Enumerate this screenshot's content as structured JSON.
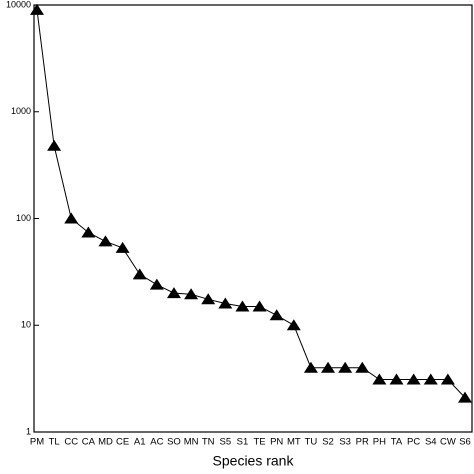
{
  "chart_data": {
    "type": "line",
    "xlabel": "Species rank",
    "categories": [
      "PM",
      "TL",
      "CC",
      "CA",
      "MD",
      "CE",
      "A1",
      "AC",
      "SO",
      "MN",
      "TN",
      "S5",
      "S1",
      "TE",
      "PN",
      "MT",
      "TU",
      "S2",
      "S3",
      "PR",
      "PH",
      "TA",
      "PC",
      "S4",
      "CW",
      "S6"
    ],
    "series": [
      {
        "color": "#000000",
        "values": [
          9000,
          480,
          100,
          74,
          61,
          53,
          30,
          24,
          20,
          19.5,
          17.5,
          16,
          15,
          15,
          12.4,
          10,
          4,
          4,
          4,
          4,
          3.1,
          3.1,
          3.1,
          3.1,
          3.1,
          2.1
        ]
      }
    ],
    "ylim": [
      1,
      10000
    ],
    "yticks": [
      1,
      10,
      100,
      1000,
      10000
    ],
    "log_y": true
  }
}
